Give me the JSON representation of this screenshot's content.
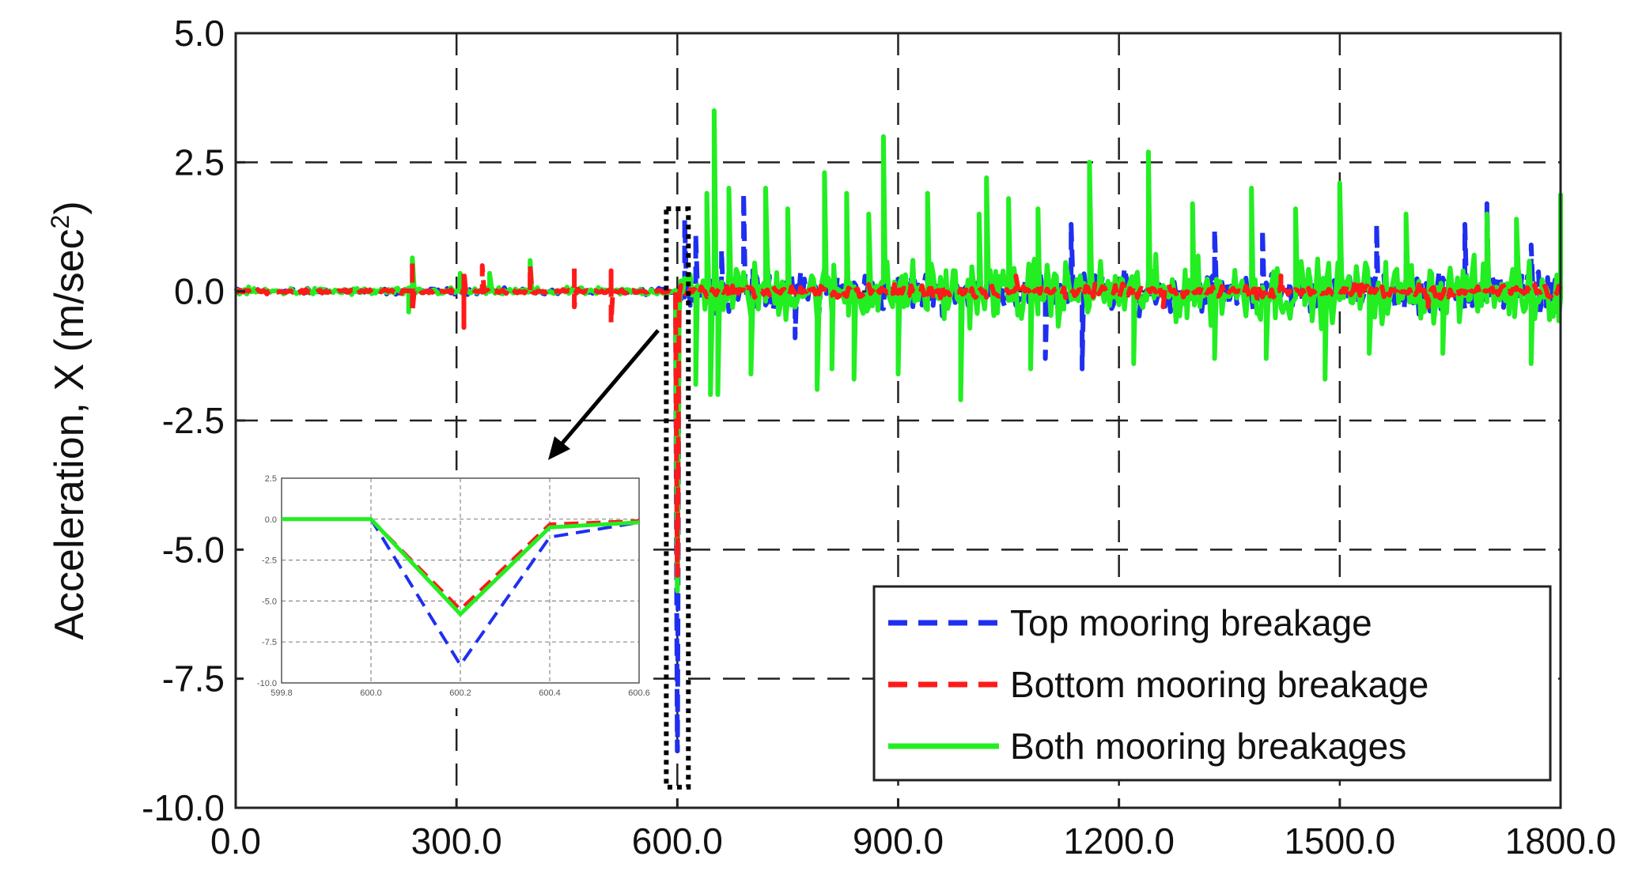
{
  "chart_data": {
    "type": "line",
    "xlabel": "",
    "ylabel": "Acceleration, X (m/sec",
    "ylabel_superscript": "2",
    "ylabel_suffix": ")",
    "xlim": [
      0,
      1800
    ],
    "ylim": [
      -10,
      5
    ],
    "xticks": [
      0,
      300,
      600,
      900,
      1200,
      1500,
      1800
    ],
    "xtick_labels": [
      "0.0",
      "300.0",
      "600.0",
      "900.0",
      "1200.0",
      "1500.0",
      "1800.0"
    ],
    "yticks": [
      5,
      2.5,
      0,
      -2.5,
      -5,
      -7.5,
      -10
    ],
    "ytick_labels": [
      "5.0",
      "2.5",
      "0.0",
      "-2.5",
      "-5.0",
      "-7.5",
      "-10.0"
    ],
    "grid": true,
    "legend_position": "bottom-right",
    "series": [
      {
        "name": "Top mooring breakage",
        "color": "#1f2ff0",
        "style": "dashed",
        "pre_event_amplitude": 0.08,
        "post_event_amplitude": 0.55,
        "event_time": 600.2,
        "event_min": -8.9,
        "spikes": [
          [
            610,
            1.4
          ],
          [
            625,
            1.1
          ],
          [
            660,
            0.8
          ],
          [
            690,
            1.9
          ],
          [
            760,
            -0.9
          ],
          [
            900,
            -0.9
          ],
          [
            1100,
            -1.3
          ],
          [
            1135,
            1.3
          ],
          [
            1150,
            -1.5
          ],
          [
            1330,
            1.2
          ],
          [
            1395,
            1.2
          ],
          [
            1550,
            1.3
          ],
          [
            1670,
            1.3
          ],
          [
            1700,
            1.7
          ],
          [
            1590,
            0.7
          ],
          [
            1760,
            0.9
          ]
        ]
      },
      {
        "name": "Bottom mooring breakage",
        "color": "#ff1a1a",
        "style": "dashed",
        "pre_event_amplitude": 0.06,
        "post_event_amplitude": 0.18,
        "event_time": 600.2,
        "event_min": -5.5,
        "spikes": [
          [
            240,
            0.6
          ],
          [
            240,
            -0.4
          ],
          [
            310,
            -0.7
          ],
          [
            310,
            0.4
          ],
          [
            335,
            0.5
          ],
          [
            400,
            0.5
          ],
          [
            460,
            0.5
          ],
          [
            460,
            -0.3
          ],
          [
            510,
            0.4
          ],
          [
            510,
            -0.6
          ],
          [
            1060,
            0.3
          ],
          [
            1260,
            -0.3
          ],
          [
            1420,
            0.3
          ],
          [
            1620,
            -0.3
          ]
        ]
      },
      {
        "name": "Both mooring breakages",
        "color": "#22ee22",
        "style": "solid",
        "pre_event_amplitude": 0.1,
        "post_event_amplitude": 0.85,
        "event_time": 600.2,
        "event_min": -5.8,
        "spikes": [
          [
            240,
            0.65
          ],
          [
            235,
            -0.4
          ],
          [
            305,
            0.35
          ],
          [
            345,
            0.35
          ],
          [
            400,
            0.6
          ],
          [
            625,
            -1.8
          ],
          [
            640,
            1.9
          ],
          [
            645,
            -2.0
          ],
          [
            650,
            3.5
          ],
          [
            655,
            -2.0
          ],
          [
            670,
            2.0
          ],
          [
            700,
            -1.6
          ],
          [
            720,
            2.0
          ],
          [
            750,
            1.6
          ],
          [
            790,
            -1.9
          ],
          [
            800,
            2.3
          ],
          [
            810,
            -1.5
          ],
          [
            830,
            1.9
          ],
          [
            840,
            -1.7
          ],
          [
            860,
            1.5
          ],
          [
            880,
            3.0
          ],
          [
            900,
            -1.6
          ],
          [
            940,
            1.9
          ],
          [
            985,
            -2.1
          ],
          [
            1010,
            1.5
          ],
          [
            1020,
            2.2
          ],
          [
            1050,
            1.8
          ],
          [
            1080,
            -1.5
          ],
          [
            1090,
            1.6
          ],
          [
            1160,
            2.5
          ],
          [
            1220,
            -1.4
          ],
          [
            1240,
            2.7
          ],
          [
            1300,
            1.7
          ],
          [
            1330,
            -1.3
          ],
          [
            1380,
            2.0
          ],
          [
            1400,
            -1.3
          ],
          [
            1440,
            1.6
          ],
          [
            1480,
            -1.7
          ],
          [
            1500,
            2.1
          ],
          [
            1540,
            -1.2
          ],
          [
            1590,
            1.5
          ],
          [
            1640,
            -1.2
          ],
          [
            1700,
            1.5
          ],
          [
            1740,
            1.4
          ],
          [
            1760,
            -1.4
          ],
          [
            1800,
            1.9
          ]
        ]
      }
    ],
    "inset": {
      "xlim": [
        599.8,
        600.6
      ],
      "ylim": [
        -10,
        2.5
      ],
      "xticks": [
        599.8,
        600.0,
        600.2,
        600.4,
        600.6
      ],
      "xtick_labels": [
        "599.8",
        "600.0",
        "600.2",
        "600.4",
        "600.6"
      ],
      "yticks": [
        2.5,
        0,
        -2.5,
        -5,
        -7.5,
        -10
      ],
      "ytick_labels": [
        "2.5",
        "0.0",
        "-2.5",
        "-5.0",
        "-7.5",
        "-10.0"
      ],
      "series": [
        {
          "name": "Top mooring breakage",
          "x": [
            599.8,
            600.0,
            600.2,
            600.4,
            600.6
          ],
          "y": [
            0,
            0,
            -8.9,
            -1.1,
            -0.2
          ]
        },
        {
          "name": "Bottom mooring breakage",
          "x": [
            599.8,
            600.0,
            600.2,
            600.4,
            600.6
          ],
          "y": [
            0,
            0,
            -5.5,
            -0.3,
            -0.1
          ]
        },
        {
          "name": "Both mooring breakages",
          "x": [
            599.8,
            600.0,
            600.2,
            600.4,
            600.6
          ],
          "y": [
            0,
            0,
            -5.8,
            -0.5,
            -0.2
          ]
        }
      ]
    },
    "highlight_box": {
      "x_range": [
        585,
        615
      ],
      "y_range": [
        -9.6,
        1.6
      ]
    }
  }
}
